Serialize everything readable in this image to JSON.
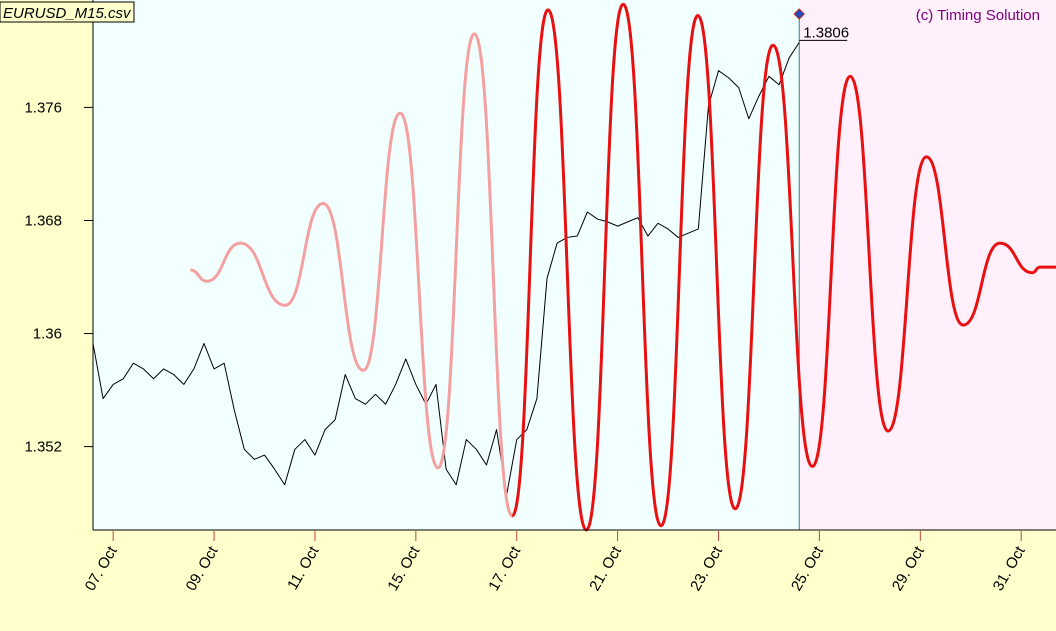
{
  "chart_data": {
    "type": "line",
    "title": "EURUSD_M15.csv",
    "annotation": "(c) Timing Solution",
    "xlim": [
      -0.4,
      18.69
    ],
    "ylim": [
      1.3461,
      1.3836
    ],
    "xticks": [
      {
        "value": 0,
        "label": "07. Oct"
      },
      {
        "value": 2,
        "label": "09. Oct"
      },
      {
        "value": 4,
        "label": "11. Oct"
      },
      {
        "value": 6,
        "label": "15. Oct"
      },
      {
        "value": 8,
        "label": "17. Oct"
      },
      {
        "value": 10,
        "label": "21. Oct"
      },
      {
        "value": 12,
        "label": "23. Oct"
      },
      {
        "value": 14,
        "label": "25. Oct"
      },
      {
        "value": 16,
        "label": "29. Oct"
      },
      {
        "value": 18,
        "label": "31. Oct"
      }
    ],
    "yticks": [
      1.352,
      1.36,
      1.368,
      1.376
    ],
    "series": [
      {
        "color": "#000000",
        "width": 1,
        "smooth": false,
        "x": [
          -0.4,
          -0.2,
          0,
          0.2,
          0.4,
          0.6,
          0.8,
          1,
          1.2,
          1.4,
          1.6,
          1.8,
          2,
          2.2,
          2.4,
          2.6,
          2.8,
          3,
          3.2,
          3.4,
          3.6,
          3.8,
          4,
          4.2,
          4.4,
          4.6,
          4.8,
          5,
          5.2,
          5.4,
          5.6,
          5.8,
          6,
          6.2,
          6.4,
          6.6,
          6.8,
          7,
          7.2,
          7.4,
          7.6,
          7.8,
          8,
          8.2,
          8.4,
          8.6,
          8.8,
          9,
          9.2,
          9.4,
          9.6,
          9.8,
          10,
          10.2,
          10.4,
          10.6,
          10.8,
          11,
          11.2,
          11.4,
          11.6,
          11.8,
          12,
          12.2,
          12.4,
          12.6,
          12.8,
          13,
          13.2,
          13.4,
          13.6
        ],
        "values": [
          1.3593,
          1.3554,
          1.3564,
          1.3568,
          1.3579,
          1.3575,
          1.3568,
          1.3575,
          1.3571,
          1.3564,
          1.3575,
          1.3593,
          1.3575,
          1.3579,
          1.3546,
          1.3518,
          1.3511,
          1.3514,
          1.3504,
          1.3493,
          1.3518,
          1.3525,
          1.3514,
          1.3532,
          1.3539,
          1.3571,
          1.3554,
          1.355,
          1.3557,
          1.355,
          1.3564,
          1.3582,
          1.3564,
          1.355,
          1.3564,
          1.3504,
          1.3493,
          1.3525,
          1.3518,
          1.3507,
          1.3532,
          1.3486,
          1.3525,
          1.3532,
          1.3554,
          1.3639,
          1.3664,
          1.3668,
          1.3669,
          1.3686,
          1.3681,
          1.3679,
          1.3676,
          1.3679,
          1.3682,
          1.3669,
          1.3678,
          1.3674,
          1.3668,
          1.3671,
          1.3674,
          1.3761,
          1.3786,
          1.3781,
          1.3774,
          1.3752,
          1.3768,
          1.3782,
          1.3776,
          1.3795,
          1.3806
        ]
      },
      {
        "color": "#f4a0a0",
        "width": 3,
        "smooth": true,
        "x": [
          1.53,
          1.86,
          2.52,
          3.41,
          4.16,
          4.96,
          5.69,
          6.44,
          7.16,
          7.91
        ],
        "values": [
          1.3645,
          1.3637,
          1.3664,
          1.362,
          1.3692,
          1.3574,
          1.3756,
          1.3505,
          1.3812,
          1.3471
        ]
      },
      {
        "color": "#e81010",
        "width": 3,
        "smooth": true,
        "x": [
          7.91,
          8.62,
          9.38,
          10.11,
          10.86,
          11.59,
          12.33,
          13.08,
          13.86,
          14.61,
          15.36,
          16.12,
          16.85,
          17.58,
          18.22,
          18.37,
          18.69
        ],
        "values": [
          1.3471,
          1.3829,
          1.3461,
          1.3833,
          1.3464,
          1.3825,
          1.3476,
          1.3804,
          1.3506,
          1.3782,
          1.3531,
          1.3725,
          1.3606,
          1.3664,
          1.3643,
          1.3647,
          1.3647
        ]
      }
    ]
  }
}
